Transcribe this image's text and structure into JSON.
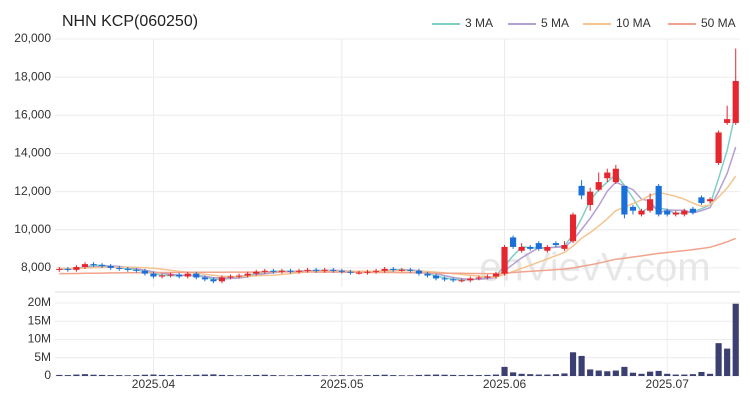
{
  "chart_data": {
    "type": "candlestick",
    "title": "NHN KCP(060250)",
    "watermark": "enVievV.com",
    "categories": [
      null,
      null,
      null,
      null,
      null,
      null,
      null,
      null,
      null,
      null,
      null,
      "2025.04",
      null,
      null,
      null,
      null,
      null,
      null,
      null,
      null,
      null,
      null,
      null,
      null,
      null,
      null,
      null,
      null,
      null,
      null,
      null,
      null,
      null,
      "2025.05",
      null,
      null,
      null,
      null,
      null,
      null,
      null,
      null,
      null,
      null,
      null,
      null,
      null,
      null,
      null,
      null,
      null,
      null,
      "2025.06",
      null,
      null,
      null,
      null,
      null,
      null,
      null,
      null,
      null,
      null,
      null,
      null,
      null,
      null,
      null,
      null,
      null,
      null,
      "2025.07",
      null,
      null,
      null,
      null,
      null,
      null,
      null,
      null
    ],
    "open": [
      7900,
      7950,
      7900,
      8050,
      8200,
      8150,
      8100,
      8000,
      7950,
      7900,
      7850,
      7700,
      7550,
      7600,
      7650,
      7550,
      7700,
      7500,
      7400,
      7300,
      7500,
      7550,
      7600,
      7700,
      7800,
      7850,
      7800,
      7850,
      7800,
      7850,
      7900,
      7850,
      7900,
      7850,
      7800,
      7750,
      7750,
      7800,
      7850,
      7950,
      7900,
      7900,
      7850,
      7700,
      7600,
      7450,
      7400,
      7350,
      7350,
      7450,
      7500,
      7550,
      7700,
      9600,
      8900,
      9100,
      9300,
      8900,
      9300,
      9000,
      9400,
      12300,
      11300,
      12100,
      12700,
      12500,
      12300,
      11200,
      10800,
      11000,
      12300,
      11000,
      10800,
      10800,
      11100,
      11700,
      11500,
      13500,
      15600,
      15600
    ],
    "high": [
      8050,
      8050,
      8150,
      8300,
      8300,
      8250,
      8200,
      8100,
      8050,
      8000,
      7950,
      7800,
      7700,
      7750,
      7750,
      7800,
      7800,
      7600,
      7500,
      7600,
      7650,
      7700,
      7800,
      7900,
      7950,
      7950,
      7950,
      7950,
      7950,
      8000,
      8000,
      8000,
      8000,
      7950,
      7900,
      7850,
      7900,
      7950,
      8050,
      8050,
      8000,
      8000,
      7950,
      7800,
      7700,
      7550,
      7500,
      7450,
      7550,
      7600,
      7650,
      7800,
      9200,
      9700,
      9300,
      9200,
      9400,
      9200,
      9400,
      9400,
      10900,
      12600,
      12200,
      13000,
      13200,
      13400,
      12300,
      11300,
      11100,
      11900,
      12400,
      11100,
      11000,
      11100,
      11200,
      11800,
      11700,
      15200,
      16500,
      19500
    ],
    "low": [
      7800,
      7800,
      7800,
      7950,
      8050,
      8000,
      7900,
      7850,
      7800,
      7750,
      7600,
      7450,
      7450,
      7500,
      7450,
      7450,
      7400,
      7300,
      7200,
      7200,
      7400,
      7450,
      7500,
      7600,
      7700,
      7700,
      7700,
      7700,
      7700,
      7750,
      7750,
      7750,
      7750,
      7700,
      7650,
      7650,
      7650,
      7700,
      7750,
      7800,
      7800,
      7750,
      7600,
      7500,
      7350,
      7300,
      7250,
      7250,
      7250,
      7350,
      7400,
      7450,
      7600,
      9000,
      8800,
      8900,
      8900,
      8800,
      9100,
      8900,
      9300,
      11600,
      11000,
      12000,
      12500,
      12400,
      10600,
      10800,
      10700,
      10900,
      10700,
      10700,
      10700,
      10700,
      10800,
      11300,
      11400,
      13400,
      15500,
      15500
    ],
    "close": [
      7950,
      7900,
      8050,
      8200,
      8150,
      8100,
      8000,
      7950,
      7900,
      7850,
      7700,
      7550,
      7600,
      7650,
      7550,
      7700,
      7500,
      7400,
      7300,
      7500,
      7550,
      7600,
      7700,
      7800,
      7850,
      7800,
      7850,
      7800,
      7850,
      7900,
      7850,
      7900,
      7850,
      7800,
      7750,
      7750,
      7800,
      7850,
      7950,
      7900,
      7900,
      7850,
      7700,
      7600,
      7450,
      7400,
      7350,
      7350,
      7450,
      7500,
      7550,
      7700,
      9100,
      9100,
      9100,
      9000,
      9000,
      9100,
      9200,
      9200,
      10800,
      11800,
      12000,
      12500,
      13000,
      13200,
      10800,
      11000,
      11000,
      11600,
      10800,
      10800,
      10900,
      11000,
      10900,
      11400,
      11600,
      15100,
      15800,
      17800
    ],
    "up_color": "#e5262f",
    "down_color": "#1b6fd8",
    "ylim": [
      7000,
      20000
    ],
    "yticks": [
      {
        "value": 8000,
        "label": "8,000"
      },
      {
        "value": 10000,
        "label": "10,000"
      },
      {
        "value": 12000,
        "label": "12,000"
      },
      {
        "value": 14000,
        "label": "14,000"
      },
      {
        "value": 16000,
        "label": "16,000"
      },
      {
        "value": 18000,
        "label": "18,000"
      },
      {
        "value": 20000,
        "label": "20,000"
      }
    ],
    "grid": true,
    "series": [
      {
        "name": "3 MA",
        "color": "#7fcfc6",
        "values": [
          7950,
          7930,
          7967,
          8050,
          8133,
          8150,
          8083,
          8017,
          7950,
          7900,
          7817,
          7700,
          7617,
          7600,
          7600,
          7633,
          7583,
          7533,
          7400,
          7400,
          7450,
          7550,
          7617,
          7700,
          7783,
          7817,
          7833,
          7817,
          7833,
          7850,
          7867,
          7883,
          7867,
          7850,
          7800,
          7767,
          7767,
          7800,
          7867,
          7900,
          7917,
          7883,
          7817,
          7717,
          7583,
          7483,
          7400,
          7367,
          7383,
          7433,
          7500,
          7583,
          8117,
          8633,
          9100,
          9067,
          9033,
          9033,
          9100,
          9167,
          9733,
          10600,
          11533,
          12100,
          12500,
          12900,
          12333,
          11667,
          10933,
          11200,
          11133,
          11067,
          10833,
          10900,
          10933,
          11100,
          11300,
          12700,
          14167,
          16233
        ]
      },
      {
        "name": "5 MA",
        "color": "#b49fd2",
        "values": [
          7950,
          7940,
          7970,
          8025,
          8050,
          8080,
          8100,
          8080,
          8020,
          7960,
          7880,
          7790,
          7720,
          7670,
          7610,
          7610,
          7600,
          7560,
          7490,
          7480,
          7450,
          7470,
          7530,
          7630,
          7700,
          7750,
          7800,
          7820,
          7830,
          7840,
          7850,
          7860,
          7870,
          7860,
          7830,
          7810,
          7790,
          7790,
          7820,
          7850,
          7880,
          7890,
          7860,
          7790,
          7700,
          7600,
          7500,
          7430,
          7400,
          7410,
          7440,
          7510,
          7860,
          8190,
          8530,
          8800,
          9060,
          9060,
          9080,
          9100,
          9460,
          10020,
          10600,
          11260,
          12020,
          12500,
          12300,
          12100,
          11600,
          11520,
          10880,
          11040,
          11020,
          11020,
          10880,
          11000,
          11160,
          12000,
          12960,
          14340
        ]
      },
      {
        "name": "10 MA",
        "color": "#f4c48e",
        "values": [
          7980,
          7970,
          7970,
          7990,
          8010,
          8030,
          8040,
          8040,
          8040,
          8030,
          8010,
          7980,
          7930,
          7880,
          7820,
          7770,
          7720,
          7670,
          7610,
          7570,
          7550,
          7550,
          7560,
          7580,
          7610,
          7620,
          7660,
          7700,
          7750,
          7790,
          7820,
          7830,
          7840,
          7840,
          7830,
          7830,
          7820,
          7830,
          7840,
          7840,
          7850,
          7850,
          7830,
          7810,
          7780,
          7740,
          7700,
          7660,
          7610,
          7570,
          7540,
          7520,
          7660,
          7810,
          7980,
          8140,
          8300,
          8470,
          8640,
          8820,
          9150,
          9560,
          9850,
          10190,
          10580,
          11000,
          11180,
          11370,
          11560,
          11800,
          11960,
          11860,
          11750,
          11600,
          11400,
          11220,
          11300,
          11710,
          12190,
          12810
        ]
      },
      {
        "name": "50 MA",
        "color": "#f2a38c",
        "values": [
          7700,
          7700,
          7710,
          7720,
          7720,
          7730,
          7740,
          7740,
          7750,
          7750,
          7760,
          7760,
          7760,
          7760,
          7760,
          7770,
          7770,
          7770,
          7770,
          7770,
          7780,
          7780,
          7780,
          7780,
          7790,
          7790,
          7790,
          7790,
          7790,
          7790,
          7780,
          7780,
          7780,
          7770,
          7770,
          7770,
          7760,
          7760,
          7760,
          7760,
          7750,
          7750,
          7740,
          7740,
          7730,
          7730,
          7720,
          7720,
          7710,
          7710,
          7700,
          7700,
          7730,
          7760,
          7790,
          7820,
          7850,
          7880,
          7910,
          7940,
          8000,
          8080,
          8160,
          8250,
          8350,
          8450,
          8510,
          8570,
          8630,
          8700,
          8760,
          8810,
          8860,
          8910,
          8960,
          9020,
          9080,
          9220,
          9370,
          9550
        ]
      }
    ],
    "volume": {
      "color": "#3c3f72",
      "ylim": [
        0,
        20000000
      ],
      "yticks": [
        0,
        {
          "value": 5000000,
          "label": "5M"
        },
        {
          "value": 10000000,
          "label": "10M"
        },
        {
          "value": 15000000,
          "label": "15M"
        },
        {
          "value": 20000000,
          "label": "20M"
        }
      ],
      "values": [
        300000,
        250000,
        400000,
        500000,
        350000,
        300000,
        250000,
        250000,
        200000,
        250000,
        350000,
        400000,
        300000,
        250000,
        300000,
        250000,
        350000,
        400000,
        450000,
        300000,
        250000,
        200000,
        250000,
        300000,
        350000,
        250000,
        200000,
        200000,
        250000,
        300000,
        250000,
        200000,
        200000,
        250000,
        200000,
        200000,
        250000,
        300000,
        350000,
        250000,
        200000,
        200000,
        300000,
        350000,
        400000,
        350000,
        300000,
        250000,
        300000,
        250000,
        300000,
        400000,
        2500000,
        1000000,
        600000,
        500000,
        400000,
        400000,
        500000,
        700000,
        6500000,
        5500000,
        1800000,
        1500000,
        1300000,
        1500000,
        2500000,
        900000,
        600000,
        1200000,
        1400000,
        600000,
        400000,
        400000,
        500000,
        1100000,
        600000,
        9000000,
        7500000,
        19800000
      ]
    }
  }
}
